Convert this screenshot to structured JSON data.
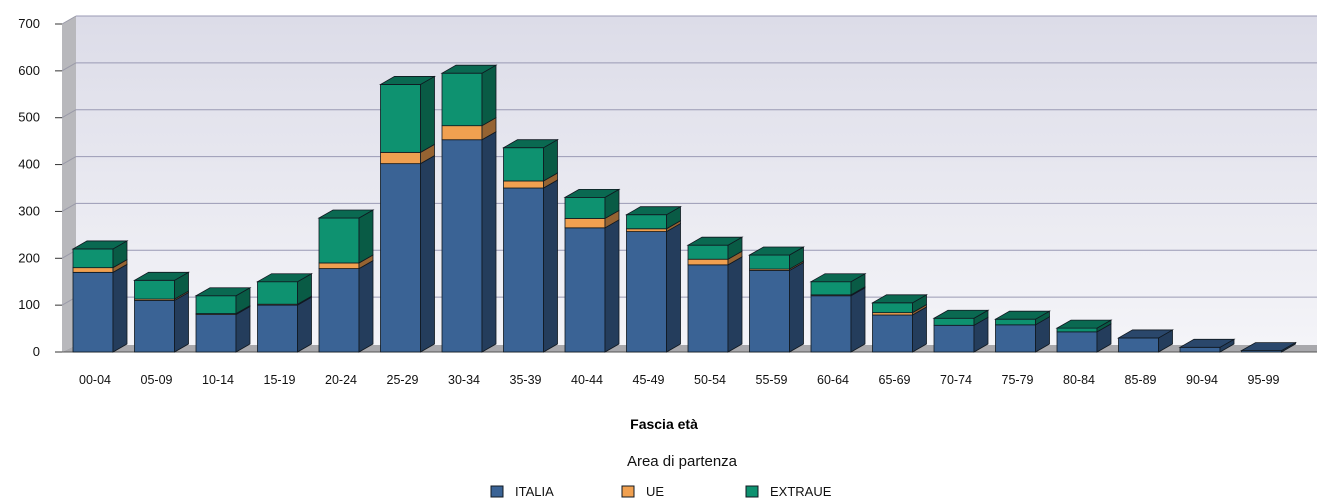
{
  "chart_data": {
    "type": "bar",
    "stacked": true,
    "categories": [
      "00-04",
      "05-09",
      "10-14",
      "15-19",
      "20-24",
      "25-29",
      "30-34",
      "35-39",
      "40-44",
      "45-49",
      "50-54",
      "55-59",
      "60-64",
      "65-69",
      "70-74",
      "75-79",
      "80-84",
      "85-89",
      "90-94",
      "95-99"
    ],
    "series": [
      {
        "name": "ITALIA",
        "color": "#3a6395",
        "values": [
          170,
          110,
          80,
          100,
          178,
          402,
          453,
          350,
          265,
          257,
          186,
          174,
          120,
          79,
          57,
          58,
          43,
          30,
          10,
          3
        ]
      },
      {
        "name": "UE",
        "color": "#f0a050",
        "values": [
          10,
          3,
          2,
          2,
          12,
          24,
          30,
          15,
          20,
          6,
          12,
          3,
          2,
          5,
          0,
          0,
          0,
          0,
          0,
          0
        ]
      },
      {
        "name": "EXTRAUE",
        "color": "#0e9270",
        "values": [
          40,
          40,
          38,
          48,
          96,
          145,
          112,
          71,
          45,
          30,
          30,
          30,
          28,
          21,
          15,
          12,
          8,
          0,
          0,
          0
        ]
      }
    ],
    "xlabel": "Fascia età",
    "ylabel": "",
    "ylim": [
      0,
      700
    ],
    "yticks": [
      0,
      100,
      200,
      300,
      400,
      500,
      600,
      700
    ],
    "grid": true,
    "legend_title": "Area di partenza",
    "legend_position": "bottom"
  }
}
